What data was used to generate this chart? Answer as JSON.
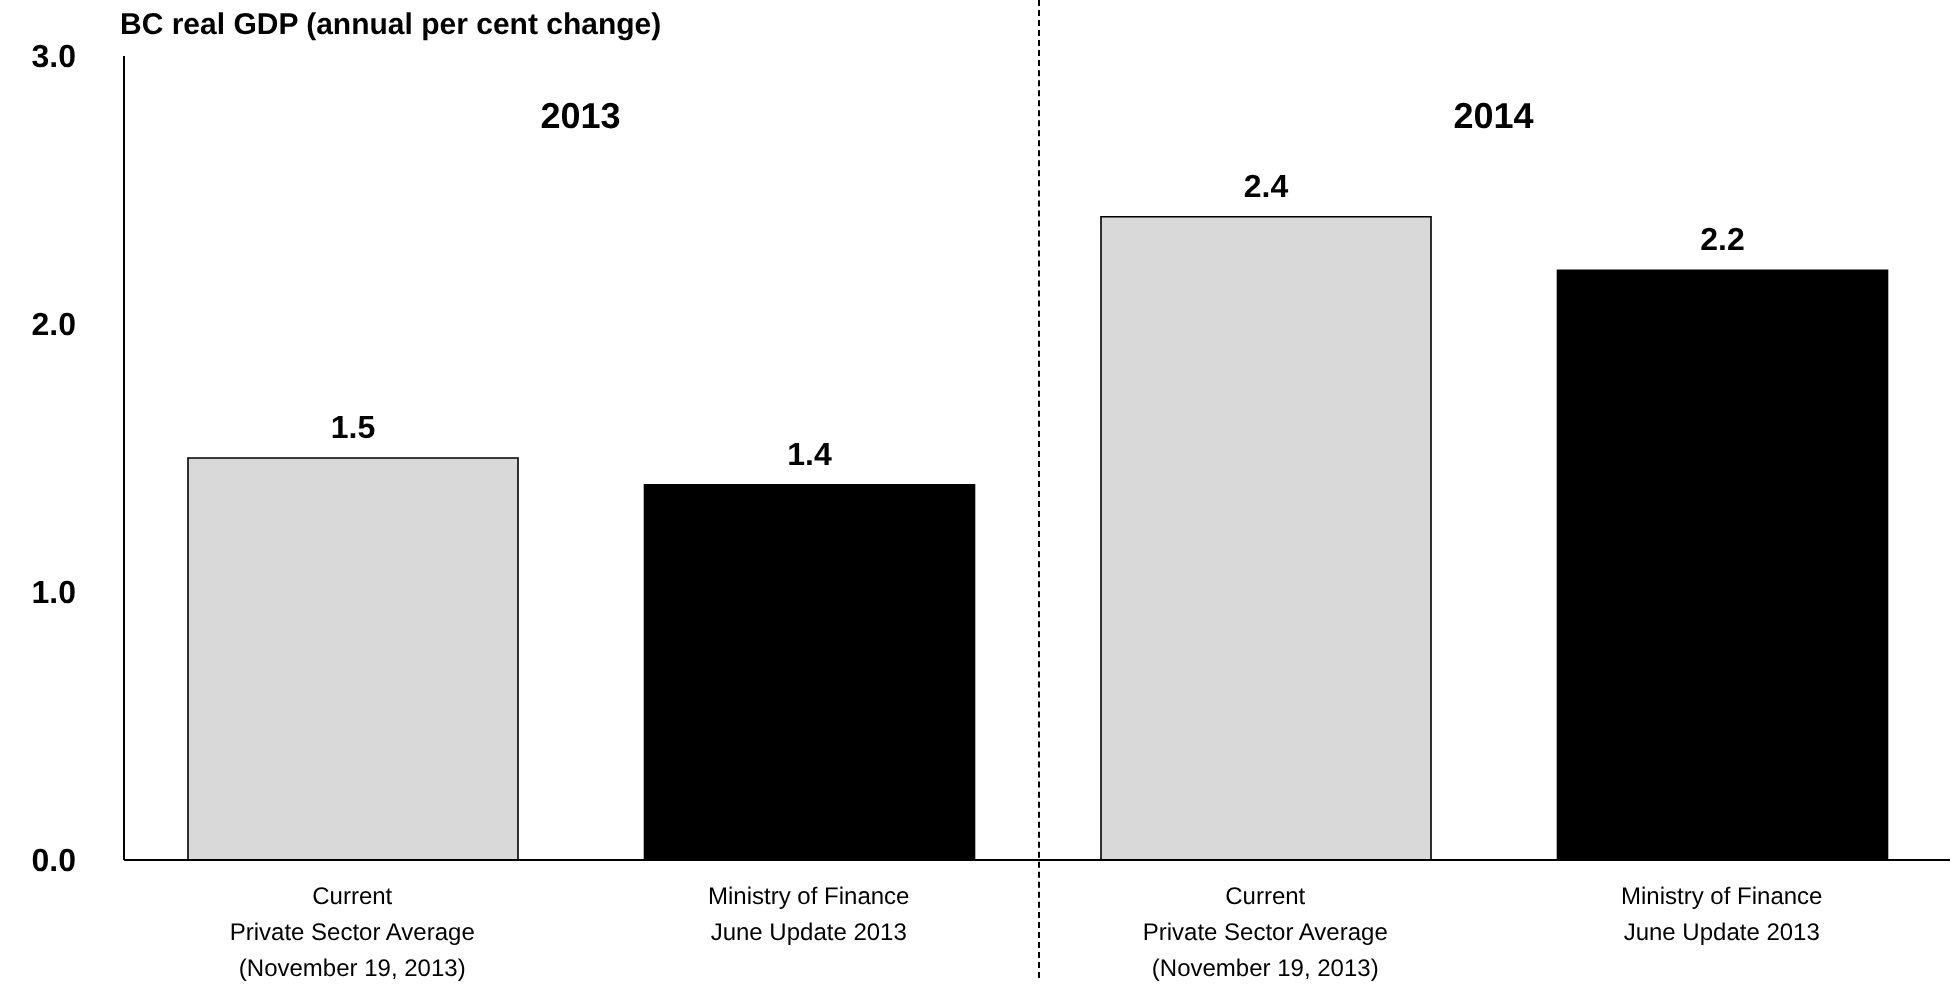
{
  "chart_data": {
    "type": "bar",
    "title": "BC real GDP (annual per cent change)",
    "categories": [
      "Current\nPrivate Sector Average\n(November 19, 2013)",
      "Ministry of Finance\nJune Update 2013",
      "Current\nPrivate Sector Average\n(November 19, 2013)",
      "Ministry of Finance\nJune Update 2013"
    ],
    "values": [
      1.5,
      1.4,
      2.4,
      2.2
    ],
    "colors": [
      "#d9d9d9",
      "#000000",
      "#d9d9d9",
      "#000000"
    ],
    "ylim": [
      0,
      3
    ],
    "yticks": [
      {
        "value": 0,
        "label": "0.0"
      },
      {
        "value": 1,
        "label": "1.0"
      },
      {
        "value": 2,
        "label": "2.0"
      },
      {
        "value": 3,
        "label": "3.0"
      }
    ],
    "data_labels": true,
    "annotations": [
      "2013",
      "2014"
    ]
  }
}
